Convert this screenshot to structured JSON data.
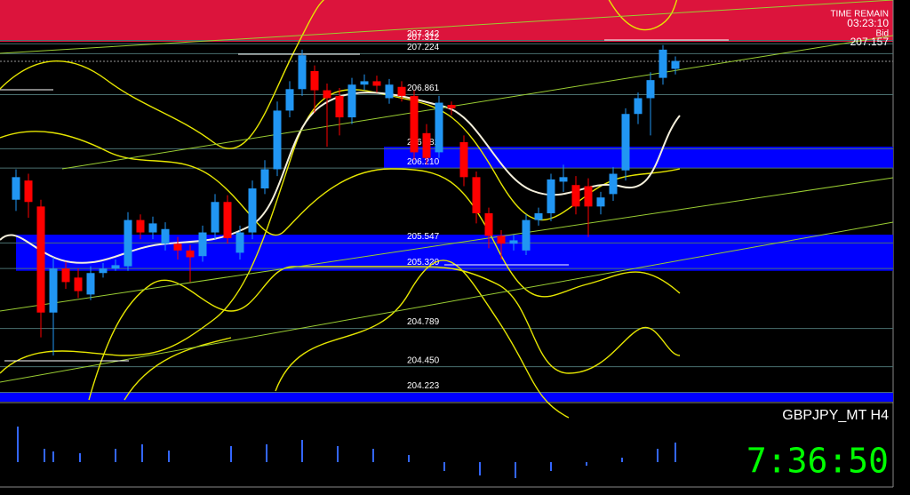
{
  "chart_data": {
    "type": "candlestick",
    "symbol": "GBPJPY_MT H4",
    "info": {
      "time_remain_label": "TIME REMAIN",
      "time_remain": "03:23:10",
      "bid_label": "Bid",
      "bid": 207.157
    },
    "clock": "7:36:50",
    "ylim": [
      204.14,
      207.7
    ],
    "up_color": "#2196f3",
    "down_color": "#ff0000",
    "zone_color": "#0000ff",
    "level_color": "#4a7070",
    "open": [
      205.93,
      206.1,
      205.87,
      204.93,
      205.32,
      205.24,
      205.09,
      205.28,
      205.32,
      205.34,
      205.75,
      205.64,
      205.54,
      205.54,
      205.48,
      205.43,
      205.64,
      205.91,
      205.46,
      205.64,
      206.03,
      206.2,
      206.72,
      206.91,
      207.07,
      206.9,
      206.85,
      206.66,
      206.95,
      206.98,
      206.83,
      206.93,
      206.85,
      206.52,
      206.35,
      206.77,
      206.44,
      206.13,
      205.81,
      205.61,
      205.54,
      205.48,
      205.75,
      205.81,
      206.09,
      206.06,
      206.05,
      205.87,
      205.98,
      206.19,
      206.69,
      206.83,
      207.01,
      207.09
    ],
    "high": [
      206.2,
      206.16,
      205.93,
      205.42,
      205.38,
      205.32,
      205.34,
      205.37,
      205.4,
      205.82,
      205.8,
      205.78,
      205.73,
      205.6,
      205.53,
      205.7,
      205.98,
      205.97,
      205.7,
      206.1,
      206.28,
      206.8,
      206.98,
      207.26,
      207.12,
      206.96,
      206.92,
      207.01,
      207.04,
      207.03,
      207.0,
      206.98,
      206.9,
      206.6,
      206.85,
      206.8,
      206.5,
      206.18,
      205.86,
      205.66,
      205.62,
      205.8,
      205.86,
      206.16,
      206.24,
      206.14,
      206.12,
      206.0,
      206.22,
      206.74,
      206.88,
      207.06,
      207.3,
      207.2
    ],
    "low": [
      205.83,
      205.77,
      204.71,
      204.55,
      205.14,
      205.06,
      205.04,
      205.24,
      205.3,
      205.3,
      205.58,
      205.58,
      205.48,
      205.4,
      205.2,
      205.38,
      205.58,
      205.54,
      205.4,
      205.58,
      205.98,
      206.14,
      206.66,
      206.85,
      206.7,
      206.4,
      206.5,
      206.6,
      206.9,
      206.88,
      206.78,
      206.8,
      206.28,
      206.24,
      206.3,
      206.68,
      206.05,
      205.72,
      205.5,
      205.4,
      205.48,
      205.44,
      205.7,
      205.74,
      206.0,
      205.8,
      205.6,
      205.8,
      205.92,
      206.1,
      206.6,
      206.5,
      206.95,
      207.04
    ],
    "close": [
      206.13,
      205.91,
      204.93,
      205.32,
      205.2,
      205.12,
      205.28,
      205.32,
      205.35,
      205.75,
      205.64,
      205.72,
      205.67,
      205.48,
      205.42,
      205.64,
      205.91,
      205.59,
      205.64,
      206.03,
      206.2,
      206.72,
      206.91,
      207.21,
      206.9,
      206.83,
      206.66,
      206.95,
      206.98,
      206.94,
      206.95,
      206.85,
      206.35,
      206.3,
      206.79,
      206.74,
      206.13,
      205.81,
      205.61,
      205.54,
      205.57,
      205.75,
      205.81,
      206.11,
      206.13,
      205.87,
      205.87,
      205.95,
      206.16,
      206.69,
      206.83,
      206.99,
      207.26,
      207.16
    ],
    "levels": [
      207.342,
      207.312,
      207.224,
      206.861,
      206.382,
      {
        "value": 206.21,
        "label": "206.210"
      },
      205.547,
      {
        "value": 205.32,
        "label": "205.320"
      },
      204.789,
      {
        "value": 204.45,
        "label": "204.450"
      },
      204.223
    ],
    "zones": [
      [
        206.21,
        206.4
      ],
      [
        205.3,
        205.62
      ],
      [
        204.14,
        204.223
      ]
    ]
  }
}
